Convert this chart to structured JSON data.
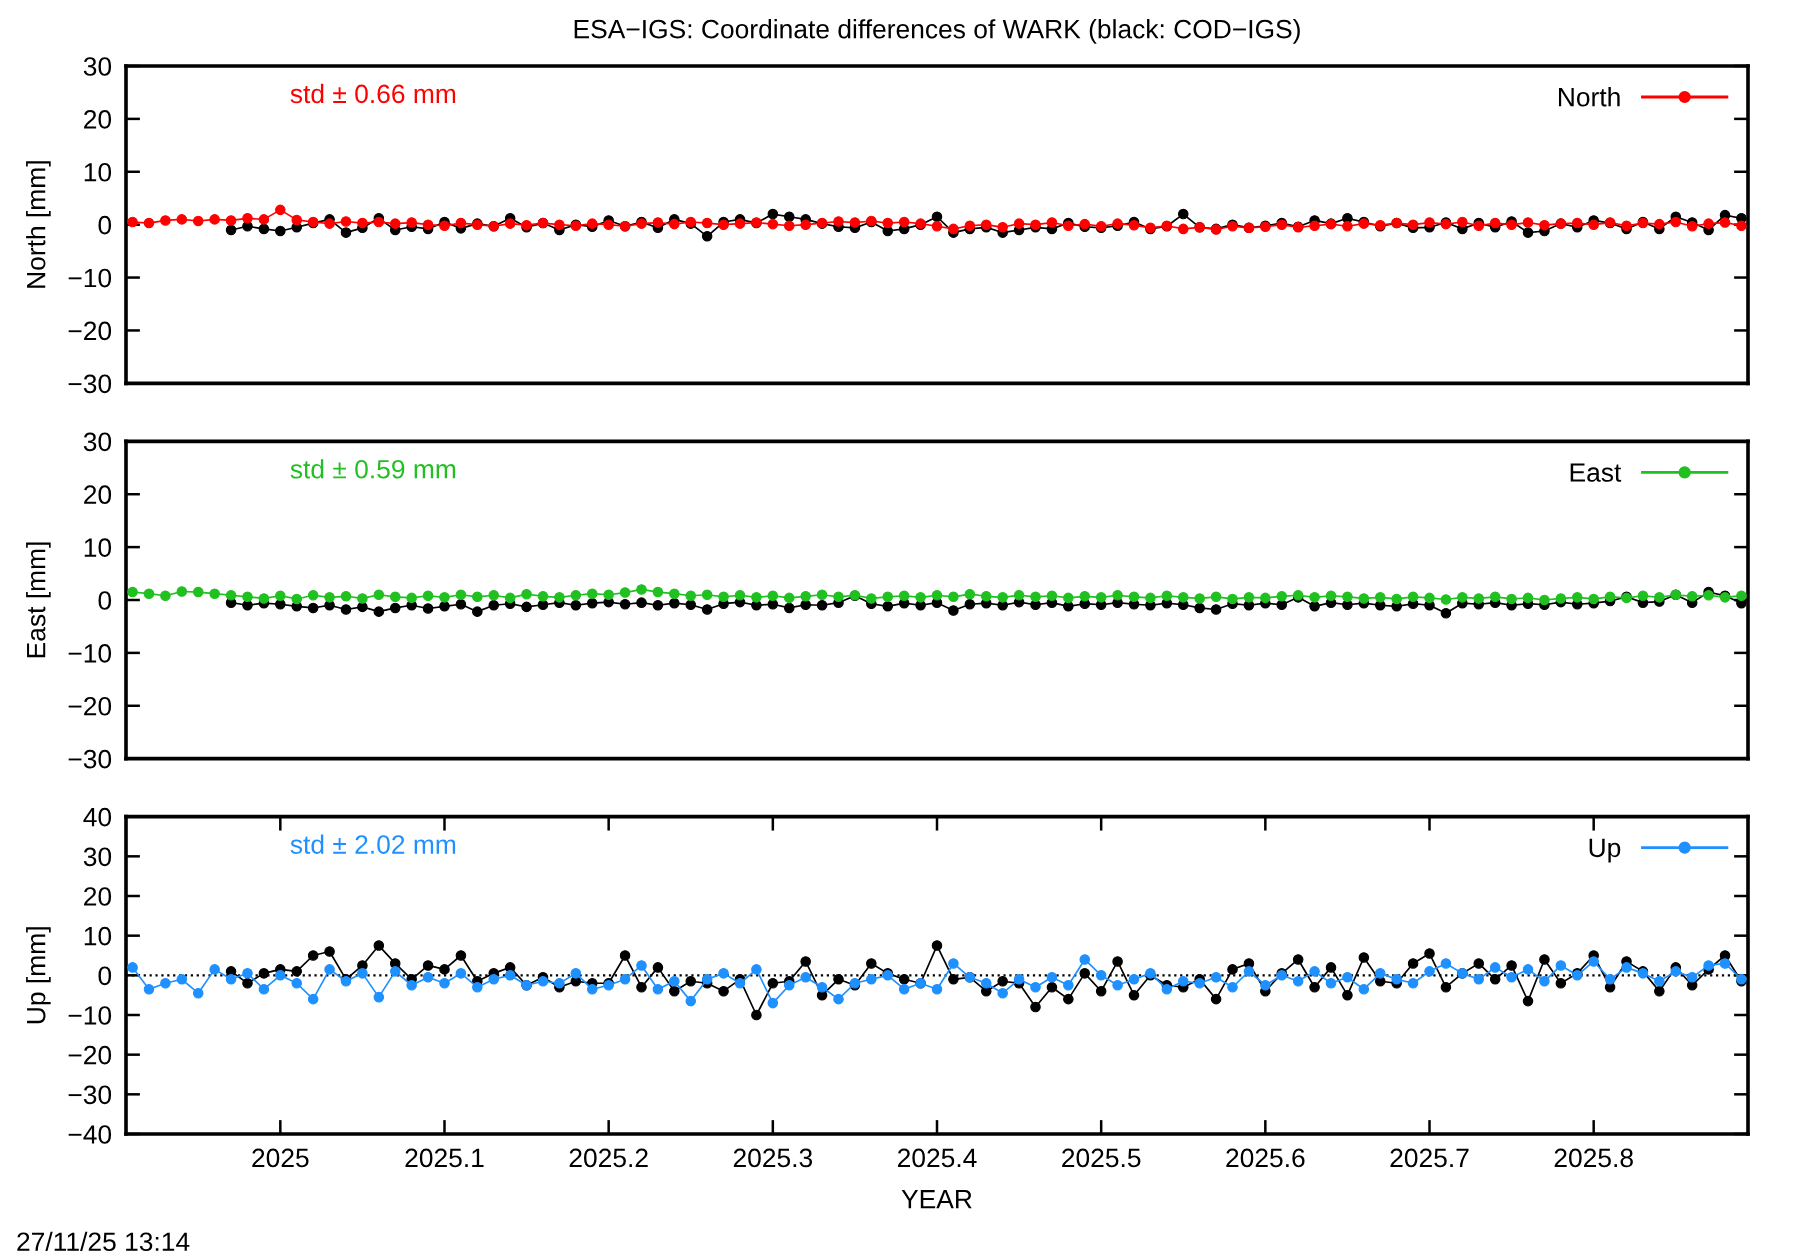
{
  "chart_data": [
    {
      "type": "line",
      "title": "ESA−IGS: Coordinate differences of WARK (black: COD−IGS)",
      "ylabel": "North [mm]",
      "annotations": [
        "std ± 0.66 mm"
      ],
      "marker": "circle",
      "line_style": "solid",
      "legend": "top right",
      "tick_labels": "y",
      "xlim": [
        2024.906,
        2025.894
      ],
      "ylim": [
        -30,
        30
      ],
      "yticks": [
        -30,
        -20,
        -10,
        0,
        10,
        20,
        30
      ],
      "x": [
        2024.91,
        2024.92,
        2024.93,
        2024.94,
        2024.95,
        2024.96,
        2024.97,
        2024.98,
        2024.99,
        2025.0,
        2025.01,
        2025.02,
        2025.03,
        2025.04,
        2025.05,
        2025.06,
        2025.07,
        2025.08,
        2025.09,
        2025.1,
        2025.11,
        2025.12,
        2025.13,
        2025.14,
        2025.15,
        2025.16,
        2025.17,
        2025.18,
        2025.19,
        2025.2,
        2025.21,
        2025.22,
        2025.23,
        2025.24,
        2025.25,
        2025.26,
        2025.27,
        2025.28,
        2025.29,
        2025.3,
        2025.31,
        2025.32,
        2025.33,
        2025.34,
        2025.35,
        2025.36,
        2025.37,
        2025.38,
        2025.39,
        2025.4,
        2025.41,
        2025.42,
        2025.43,
        2025.44,
        2025.45,
        2025.46,
        2025.47,
        2025.48,
        2025.49,
        2025.5,
        2025.51,
        2025.52,
        2025.53,
        2025.54,
        2025.55,
        2025.56,
        2025.57,
        2025.58,
        2025.59,
        2025.6,
        2025.61,
        2025.62,
        2025.63,
        2025.64,
        2025.65,
        2025.66,
        2025.67,
        2025.68,
        2025.69,
        2025.7,
        2025.71,
        2025.72,
        2025.73,
        2025.74,
        2025.75,
        2025.76,
        2025.77,
        2025.78,
        2025.79,
        2025.8,
        2025.81,
        2025.82,
        2025.83,
        2025.84,
        2025.85,
        2025.86,
        2025.87,
        2025.88,
        2025.89
      ],
      "series": [
        {
          "color": "#000000",
          "values": [
            null,
            null,
            null,
            null,
            null,
            null,
            -1.0,
            -0.3,
            -0.8,
            -1.2,
            -0.5,
            0.3,
            1.0,
            -1.5,
            -0.6,
            1.2,
            -1.0,
            -0.4,
            -0.8,
            0.5,
            -0.7,
            0.2,
            -0.3,
            1.2,
            -0.5,
            0.3,
            -1.0,
            0.0,
            -0.4,
            0.8,
            -0.3,
            0.5,
            -0.6,
            1.0,
            0.2,
            -2.2,
            0.5,
            1.0,
            0.3,
            2.0,
            1.5,
            1.0,
            0.2,
            -0.4,
            -0.6,
            0.5,
            -1.2,
            -0.8,
            0.0,
            1.5,
            -1.5,
            -0.8,
            -0.5,
            -1.5,
            -1.0,
            -0.5,
            -0.8,
            0.3,
            -0.4,
            -0.6,
            -0.2,
            0.5,
            -0.8,
            -0.3,
            2.0,
            -0.5,
            -0.8,
            0.0,
            -0.6,
            -0.2,
            0.3,
            -0.4,
            0.8,
            0.2,
            1.2,
            0.5,
            -0.3,
            0.3,
            -0.6,
            -0.5,
            0.4,
            -0.8,
            0.3,
            -0.5,
            0.6,
            -1.5,
            -1.2,
            0.2,
            -0.5,
            0.8,
            0.3,
            -0.8,
            0.5,
            -0.8,
            1.5,
            0.4,
            -1.0,
            1.8,
            1.2
          ]
        },
        {
          "name": "North",
          "color": "#ff0000",
          "values": [
            0.5,
            0.3,
            0.8,
            1.0,
            0.7,
            1.0,
            0.8,
            1.2,
            1.0,
            2.8,
            0.9,
            0.5,
            0.2,
            0.6,
            0.3,
            0.5,
            0.2,
            0.4,
            0.0,
            -0.2,
            0.3,
            0.0,
            -0.3,
            0.2,
            -0.1,
            0.3,
            0.0,
            -0.2,
            0.2,
            0.0,
            -0.3,
            0.2,
            0.4,
            0.1,
            0.5,
            0.3,
            0.0,
            0.2,
            0.4,
            0.1,
            -0.2,
            0.0,
            0.3,
            0.6,
            0.4,
            0.7,
            0.3,
            0.5,
            0.2,
            -0.3,
            -0.8,
            -0.2,
            0.0,
            -0.5,
            0.2,
            0.0,
            0.4,
            -0.2,
            0.1,
            -0.3,
            0.2,
            -0.1,
            -0.6,
            -0.2,
            -0.8,
            -0.5,
            -0.9,
            -0.3,
            -0.6,
            -0.4,
            0.0,
            -0.5,
            -0.2,
            0.1,
            -0.3,
            0.2,
            -0.1,
            0.3,
            0.0,
            0.4,
            0.1,
            0.5,
            -0.2,
            0.3,
            0.0,
            0.4,
            -0.1,
            0.2,
            0.3,
            0.0,
            0.4,
            -0.2,
            0.3,
            0.1,
            0.5,
            -0.3,
            0.2,
            0.4,
            -0.2
          ]
        }
      ]
    },
    {
      "type": "line",
      "ylabel": "East [mm]",
      "annotations": [
        "std ± 0.59 mm"
      ],
      "marker": "circle",
      "line_style": "solid",
      "legend": "top right",
      "tick_labels": "y",
      "xlim": [
        2024.906,
        2025.894
      ],
      "ylim": [
        -30,
        30
      ],
      "yticks": [
        -30,
        -20,
        -10,
        0,
        10,
        20,
        30
      ],
      "x": [
        2024.91,
        2024.92,
        2024.93,
        2024.94,
        2024.95,
        2024.96,
        2024.97,
        2024.98,
        2024.99,
        2025.0,
        2025.01,
        2025.02,
        2025.03,
        2025.04,
        2025.05,
        2025.06,
        2025.07,
        2025.08,
        2025.09,
        2025.1,
        2025.11,
        2025.12,
        2025.13,
        2025.14,
        2025.15,
        2025.16,
        2025.17,
        2025.18,
        2025.19,
        2025.2,
        2025.21,
        2025.22,
        2025.23,
        2025.24,
        2025.25,
        2025.26,
        2025.27,
        2025.28,
        2025.29,
        2025.3,
        2025.31,
        2025.32,
        2025.33,
        2025.34,
        2025.35,
        2025.36,
        2025.37,
        2025.38,
        2025.39,
        2025.4,
        2025.41,
        2025.42,
        2025.43,
        2025.44,
        2025.45,
        2025.46,
        2025.47,
        2025.48,
        2025.49,
        2025.5,
        2025.51,
        2025.52,
        2025.53,
        2025.54,
        2025.55,
        2025.56,
        2025.57,
        2025.58,
        2025.59,
        2025.6,
        2025.61,
        2025.62,
        2025.63,
        2025.64,
        2025.65,
        2025.66,
        2025.67,
        2025.68,
        2025.69,
        2025.7,
        2025.71,
        2025.72,
        2025.73,
        2025.74,
        2025.75,
        2025.76,
        2025.77,
        2025.78,
        2025.79,
        2025.8,
        2025.81,
        2025.82,
        2025.83,
        2025.84,
        2025.85,
        2025.86,
        2025.87,
        2025.88,
        2025.89
      ],
      "series": [
        {
          "color": "#000000",
          "values": [
            null,
            null,
            null,
            null,
            null,
            null,
            -0.5,
            -1.0,
            -0.6,
            -0.8,
            -1.2,
            -1.5,
            -1.0,
            -1.8,
            -1.3,
            -2.2,
            -1.5,
            -1.0,
            -1.6,
            -1.2,
            -0.8,
            -2.2,
            -1.0,
            -0.7,
            -1.3,
            -0.9,
            -0.5,
            -1.0,
            -0.6,
            -0.4,
            -0.8,
            -0.5,
            -1.0,
            -0.6,
            -0.9,
            -1.8,
            -0.7,
            -0.4,
            -1.0,
            -0.8,
            -1.5,
            -0.9,
            -1.0,
            -0.5,
            0.8,
            -0.7,
            -1.2,
            -0.6,
            -1.0,
            -0.5,
            -2.0,
            -0.8,
            -0.6,
            -1.0,
            -0.4,
            -0.9,
            -0.5,
            -1.2,
            -0.7,
            -0.9,
            -0.5,
            -0.8,
            -1.0,
            -0.6,
            -0.9,
            -1.5,
            -1.8,
            -0.7,
            -1.0,
            -0.6,
            -0.9,
            0.5,
            -1.2,
            -0.5,
            -0.9,
            -0.6,
            -1.0,
            -1.2,
            -0.7,
            -1.0,
            -2.5,
            -0.6,
            -0.8,
            -0.5,
            -1.0,
            -0.7,
            -0.9,
            -0.4,
            -0.8,
            -0.6,
            -0.2,
            0.6,
            -0.5,
            -0.3,
            1.0,
            -0.5,
            1.5,
            0.8,
            -0.6
          ]
        },
        {
          "name": "East",
          "color": "#20c020",
          "values": [
            1.5,
            1.2,
            0.8,
            1.6,
            1.5,
            1.2,
            0.9,
            0.6,
            0.3,
            0.8,
            0.2,
            0.9,
            0.5,
            0.7,
            0.3,
            1.0,
            0.6,
            0.4,
            0.8,
            0.5,
            1.0,
            0.6,
            0.9,
            0.4,
            1.1,
            0.7,
            0.5,
            0.9,
            1.2,
            1.0,
            1.4,
            2.0,
            1.5,
            1.2,
            0.8,
            1.0,
            0.6,
            0.9,
            0.5,
            0.8,
            0.4,
            0.7,
            1.0,
            0.6,
            0.9,
            0.3,
            0.6,
            0.8,
            0.5,
            0.9,
            0.6,
            1.1,
            0.7,
            0.5,
            0.9,
            0.6,
            0.8,
            0.4,
            0.7,
            0.5,
            0.9,
            0.6,
            0.4,
            0.8,
            0.5,
            0.3,
            0.6,
            0.2,
            0.5,
            0.4,
            0.7,
            0.9,
            0.5,
            0.8,
            0.6,
            0.3,
            0.5,
            0.2,
            0.6,
            0.4,
            0.1,
            0.5,
            0.3,
            0.6,
            0.2,
            0.4,
            0.0,
            0.3,
            0.5,
            0.2,
            0.6,
            0.4,
            0.8,
            0.5,
            1.0,
            0.7,
            0.9,
            0.5,
            0.8
          ]
        }
      ]
    },
    {
      "type": "line",
      "xlabel": "YEAR",
      "ylabel": "Up [mm]",
      "annotations": [
        "std ± 2.02 mm",
        "27/11/25 13:14"
      ],
      "marker": "circle",
      "line_style": "solid",
      "legend": "top right",
      "xlim": [
        2024.906,
        2025.894
      ],
      "xticks": [
        2025,
        2025.1,
        2025.2,
        2025.3,
        2025.4,
        2025.5,
        2025.6,
        2025.7,
        2025.8
      ],
      "ylim": [
        -40,
        40
      ],
      "yticks": [
        -40,
        -30,
        -20,
        -10,
        0,
        10,
        20,
        30,
        40
      ],
      "ref_lines": [
        {
          "axis": "y",
          "value": 0,
          "color": "#000000",
          "line_style": "dotted"
        }
      ],
      "x": [
        2024.91,
        2024.92,
        2024.93,
        2024.94,
        2024.95,
        2024.96,
        2024.97,
        2024.98,
        2024.99,
        2025.0,
        2025.01,
        2025.02,
        2025.03,
        2025.04,
        2025.05,
        2025.06,
        2025.07,
        2025.08,
        2025.09,
        2025.1,
        2025.11,
        2025.12,
        2025.13,
        2025.14,
        2025.15,
        2025.16,
        2025.17,
        2025.18,
        2025.19,
        2025.2,
        2025.21,
        2025.22,
        2025.23,
        2025.24,
        2025.25,
        2025.26,
        2025.27,
        2025.28,
        2025.29,
        2025.3,
        2025.31,
        2025.32,
        2025.33,
        2025.34,
        2025.35,
        2025.36,
        2025.37,
        2025.38,
        2025.39,
        2025.4,
        2025.41,
        2025.42,
        2025.43,
        2025.44,
        2025.45,
        2025.46,
        2025.47,
        2025.48,
        2025.49,
        2025.5,
        2025.51,
        2025.52,
        2025.53,
        2025.54,
        2025.55,
        2025.56,
        2025.57,
        2025.58,
        2025.59,
        2025.6,
        2025.61,
        2025.62,
        2025.63,
        2025.64,
        2025.65,
        2025.66,
        2025.67,
        2025.68,
        2025.69,
        2025.7,
        2025.71,
        2025.72,
        2025.73,
        2025.74,
        2025.75,
        2025.76,
        2025.77,
        2025.78,
        2025.79,
        2025.8,
        2025.81,
        2025.82,
        2025.83,
        2025.84,
        2025.85,
        2025.86,
        2025.87,
        2025.88,
        2025.89
      ],
      "series": [
        {
          "color": "#000000",
          "values": [
            null,
            null,
            null,
            null,
            null,
            null,
            1.0,
            -2.0,
            0.5,
            1.5,
            1.0,
            5.0,
            6.0,
            -1.0,
            2.5,
            7.5,
            3.0,
            -1.0,
            2.5,
            1.5,
            5.0,
            -1.5,
            0.5,
            2.0,
            -2.5,
            -0.5,
            -3.0,
            -1.5,
            -2.0,
            -2.0,
            5.0,
            -3.0,
            2.0,
            -4.0,
            -1.5,
            -2.0,
            -4.0,
            -1.0,
            -10.0,
            -2.0,
            -1.5,
            3.5,
            -5.0,
            -1.0,
            -2.5,
            3.0,
            0.5,
            -1.0,
            -2.0,
            7.5,
            -1.0,
            -0.5,
            -4.0,
            -1.5,
            -2.0,
            -8.0,
            -3.0,
            -6.0,
            0.5,
            -4.0,
            3.5,
            -5.0,
            0.0,
            -2.5,
            -3.0,
            -1.0,
            -6.0,
            1.5,
            3.0,
            -4.0,
            0.5,
            4.0,
            -3.0,
            2.0,
            -5.0,
            4.5,
            -1.5,
            -2.0,
            3.0,
            5.5,
            -3.0,
            0.5,
            3.0,
            -1.0,
            2.5,
            -6.5,
            4.0,
            -2.0,
            0.5,
            5.0,
            -3.0,
            3.5,
            1.0,
            -4.0,
            2.0,
            -2.5,
            1.5,
            5.0,
            -1.5
          ]
        },
        {
          "name": "Up",
          "color": "#1e90ff",
          "values": [
            2.0,
            -3.5,
            -2.0,
            -1.0,
            -4.5,
            1.5,
            -1.0,
            0.5,
            -3.5,
            0.0,
            -2.0,
            -6.0,
            1.5,
            -1.5,
            0.5,
            -5.5,
            1.0,
            -2.5,
            -0.5,
            -2.0,
            0.5,
            -3.0,
            -1.0,
            0.0,
            -2.5,
            -1.5,
            -2.0,
            0.5,
            -3.5,
            -2.5,
            -1.0,
            2.5,
            -3.5,
            -1.5,
            -6.5,
            -1.0,
            0.5,
            -2.0,
            1.5,
            -7.0,
            -2.5,
            -0.5,
            -3.0,
            -6.0,
            -2.0,
            -1.0,
            0.0,
            -3.5,
            -2.0,
            -3.5,
            3.0,
            -0.5,
            -2.0,
            -4.5,
            -1.0,
            -3.0,
            -0.5,
            -2.5,
            4.0,
            0.0,
            -2.5,
            -1.0,
            0.5,
            -3.5,
            -1.5,
            -2.0,
            -0.5,
            -3.0,
            1.0,
            -2.5,
            0.0,
            -1.5,
            1.0,
            -2.0,
            -0.5,
            -3.5,
            0.5,
            -1.0,
            -2.0,
            1.0,
            3.0,
            0.5,
            -1.0,
            2.0,
            -0.5,
            1.5,
            -1.5,
            2.5,
            0.0,
            3.5,
            -1.0,
            2.0,
            0.5,
            -1.5,
            1.0,
            -0.5,
            2.5,
            3.0,
            -1.0
          ]
        }
      ]
    }
  ]
}
